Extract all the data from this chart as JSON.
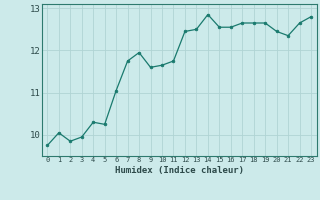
{
  "x": [
    0,
    1,
    2,
    3,
    4,
    5,
    6,
    7,
    8,
    9,
    10,
    11,
    12,
    13,
    14,
    15,
    16,
    17,
    18,
    19,
    20,
    21,
    22,
    23
  ],
  "y": [
    9.75,
    10.05,
    9.85,
    9.95,
    10.3,
    10.25,
    11.05,
    11.75,
    11.95,
    11.6,
    11.65,
    11.75,
    12.45,
    12.5,
    12.85,
    12.55,
    12.55,
    12.65,
    12.65,
    12.65,
    12.45,
    12.35,
    12.65,
    12.8
  ],
  "line_color": "#1a7a6e",
  "marker_color": "#1a7a6e",
  "bg_color": "#cceaea",
  "grid_color": "#b0d4d4",
  "xlabel": "Humidex (Indice chaleur)",
  "ylim_min": 9.5,
  "ylim_max": 13.1,
  "xlim_min": -0.5,
  "xlim_max": 23.5,
  "yticks": [
    10,
    11,
    12,
    13
  ],
  "axis_color": "#2d7a6e",
  "tick_color": "#2d4a4a"
}
